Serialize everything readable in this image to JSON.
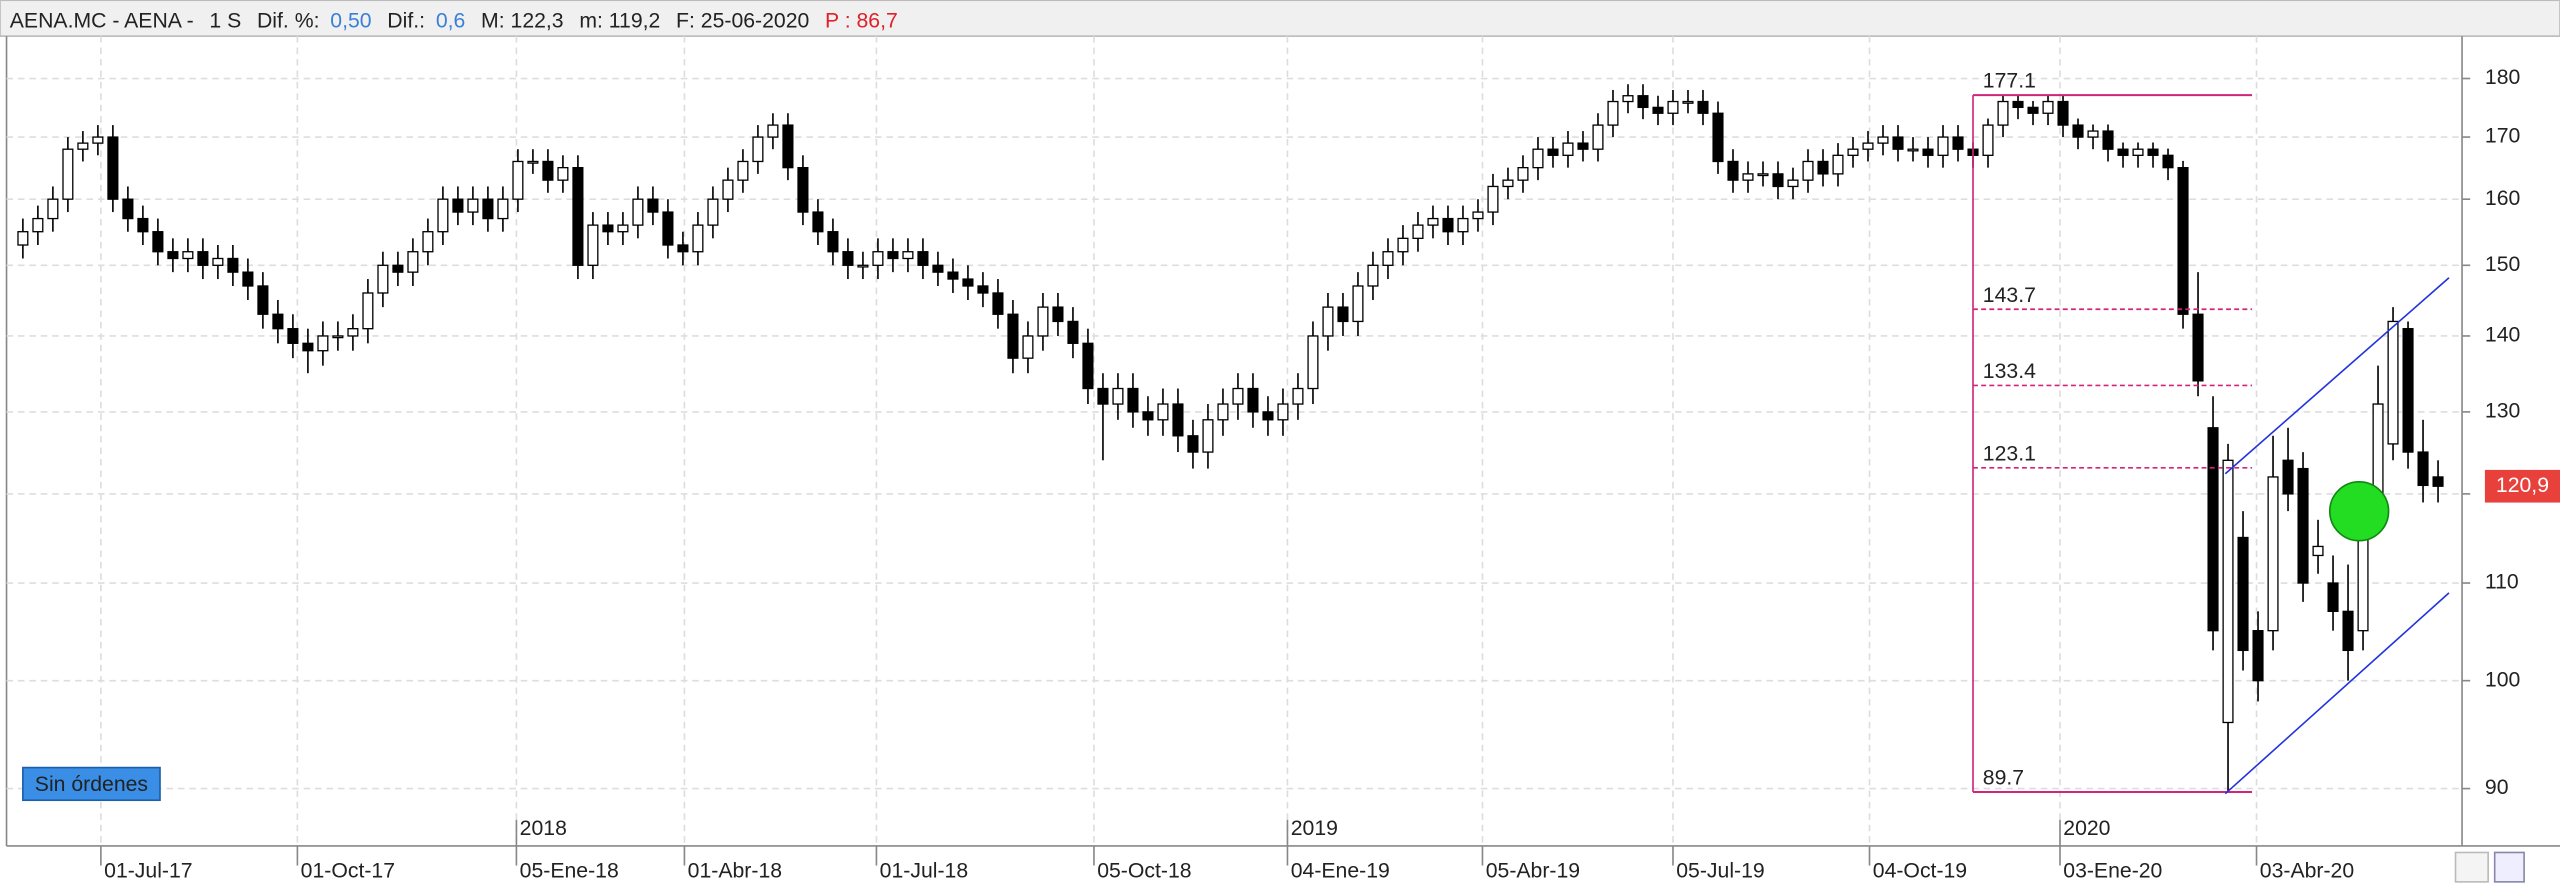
{
  "header": {
    "symbol": "AENA.MC - AENA -",
    "period": "1 S",
    "dif_pct_label": "Dif. %:",
    "dif_pct": "0,50",
    "dif_label": "Dif.:",
    "dif": "0,6",
    "max_label": "M: 122,3",
    "min_label": "m: 119,2",
    "date_label": "F: 25-06-2020",
    "p_label": "P : 86,7"
  },
  "orders_button": "Sin órdenes",
  "chart_data": {
    "type": "candlestick",
    "log_scale": true,
    "grid": true,
    "ylim": [
      85.1,
      187.6
    ],
    "yticks": [
      90,
      100,
      110,
      120,
      130,
      140,
      150,
      160,
      170,
      180
    ],
    "xlim": [
      -1.09,
      162.6
    ],
    "xticks": [
      {
        "value": 5.2,
        "label": "01-Jul-17"
      },
      {
        "value": 18.3,
        "label": "01-Oct-17"
      },
      {
        "value": 32.9,
        "label": "05-Ene-18"
      },
      {
        "value": 44.1,
        "label": "01-Abr-18"
      },
      {
        "value": 56.9,
        "label": "01-Jul-18"
      },
      {
        "value": 71.4,
        "label": "05-Oct-18"
      },
      {
        "value": 84.3,
        "label": "04-Ene-19"
      },
      {
        "value": 97.3,
        "label": "05-Abr-19"
      },
      {
        "value": 110,
        "label": "05-Jul-19"
      },
      {
        "value": 123.1,
        "label": "04-Oct-19"
      },
      {
        "value": 135.8,
        "label": "03-Ene-20"
      },
      {
        "value": 148.9,
        "label": "03-Abr-20"
      }
    ],
    "year_ticks": [
      {
        "value": 32.9,
        "label": "2018"
      },
      {
        "value": 84.3,
        "label": "2019"
      },
      {
        "value": 135.8,
        "label": "2020"
      }
    ],
    "up_color": "#ffffff",
    "down_color": "#000000",
    "open": [
      153,
      155,
      157,
      160,
      168,
      169,
      170,
      160,
      157,
      155,
      152,
      151,
      152,
      150,
      151,
      149,
      147,
      143,
      141,
      139,
      138,
      140,
      140,
      141,
      146,
      150,
      149,
      152,
      155,
      160,
      158,
      160,
      157,
      160,
      166,
      166,
      163,
      165,
      150,
      156,
      155,
      156,
      160,
      158,
      153,
      152,
      156,
      160,
      163,
      166,
      170,
      172,
      165,
      158,
      155,
      152,
      150,
      150,
      152,
      151,
      152,
      150,
      149,
      148,
      147,
      146,
      143,
      137,
      140,
      144,
      142,
      139,
      133,
      131,
      133,
      130,
      129,
      131,
      127,
      125,
      129,
      131,
      133,
      130,
      129,
      131,
      133,
      140,
      144,
      142,
      147,
      150,
      152,
      154,
      156,
      157,
      155,
      157,
      158,
      162,
      163,
      165,
      168,
      167,
      169,
      168,
      172,
      176,
      177,
      175,
      174,
      176,
      176,
      174,
      166,
      163,
      164,
      164,
      162,
      163,
      166,
      164,
      167,
      168,
      169,
      170,
      168,
      168,
      167,
      170,
      168,
      167,
      172,
      176,
      175,
      174,
      176,
      172,
      170,
      171,
      168,
      167,
      168,
      167,
      165,
      143,
      128,
      96,
      115,
      105,
      105,
      124,
      123,
      113,
      110,
      107,
      105,
      118,
      126,
      141,
      125,
      122
    ],
    "high": [
      157,
      159,
      162,
      170,
      171,
      172,
      172,
      162,
      159,
      157,
      154,
      154,
      154,
      153,
      153,
      151,
      149,
      145,
      143,
      141,
      142,
      142,
      143,
      148,
      152,
      152,
      154,
      157,
      162,
      162,
      162,
      162,
      162,
      168,
      168,
      168,
      167,
      167,
      158,
      158,
      158,
      162,
      162,
      160,
      155,
      158,
      162,
      165,
      168,
      172,
      174,
      174,
      167,
      160,
      157,
      154,
      152,
      154,
      154,
      154,
      154,
      152,
      151,
      150,
      149,
      148,
      145,
      142,
      146,
      146,
      144,
      141,
      135,
      135,
      135,
      132,
      133,
      133,
      129,
      131,
      133,
      135,
      135,
      132,
      133,
      135,
      142,
      146,
      146,
      149,
      152,
      154,
      156,
      158,
      159,
      159,
      159,
      160,
      164,
      165,
      167,
      170,
      170,
      171,
      171,
      174,
      178,
      179,
      179,
      177,
      178,
      178,
      178,
      176,
      168,
      166,
      166,
      166,
      165,
      168,
      168,
      169,
      170,
      171,
      172,
      172,
      170,
      170,
      172,
      172,
      169.1,
      173.1,
      177.1,
      177.1,
      176.1,
      177.1,
      177.1,
      173.1,
      172.1,
      172.1,
      169.1,
      169.1,
      169.1,
      168.1,
      166.1,
      149,
      132,
      126,
      118,
      107,
      127,
      128,
      125,
      117,
      113,
      112,
      118,
      136,
      144,
      142,
      129,
      124
    ],
    "low": [
      151,
      153,
      155,
      158,
      166,
      167,
      158,
      155,
      153,
      150,
      149,
      149,
      148,
      148,
      147,
      145,
      141,
      139,
      137,
      135,
      136,
      138,
      138,
      139,
      144,
      147,
      147,
      150,
      153,
      156,
      156,
      155,
      155,
      158,
      164,
      161,
      161,
      148,
      148,
      153,
      153,
      154,
      156,
      151,
      150,
      150,
      154,
      158,
      161,
      164,
      168,
      163,
      156,
      153,
      150,
      148,
      148,
      148,
      149,
      149,
      148,
      147,
      146,
      145,
      144,
      141,
      135,
      135,
      138,
      140,
      137,
      131,
      124,
      129,
      128,
      127,
      127,
      125,
      123,
      123,
      127,
      129,
      128,
      127,
      127,
      129,
      131,
      138,
      140,
      140,
      145,
      148,
      150,
      152,
      154,
      153,
      153,
      155,
      156,
      160,
      161,
      163,
      165,
      165,
      166,
      166,
      170,
      174,
      173,
      172,
      172,
      174,
      172,
      164,
      161,
      161,
      162,
      160,
      160,
      161,
      162,
      162,
      165,
      166,
      167,
      166,
      166,
      165,
      165,
      166,
      165,
      165,
      170,
      173,
      172,
      172,
      170,
      168,
      168,
      166,
      165,
      165,
      165,
      163,
      141,
      132,
      103,
      89.7,
      101,
      98,
      103,
      118,
      108,
      111,
      105,
      100,
      103,
      116,
      124,
      123,
      119,
      119
    ],
    "close": [
      155,
      157,
      160,
      168,
      169,
      170,
      160,
      157,
      155,
      152,
      151,
      152,
      150,
      151,
      149,
      147,
      143,
      141,
      139,
      138,
      140,
      140,
      141,
      146,
      150,
      149,
      152,
      155,
      160,
      158,
      160,
      157,
      160,
      166,
      166,
      163,
      165,
      150,
      156,
      155,
      156,
      160,
      158,
      153,
      152,
      156,
      160,
      163,
      166,
      170,
      172,
      165,
      158,
      155,
      152,
      150,
      150,
      152,
      151,
      152,
      150,
      149,
      148,
      147,
      146,
      143,
      137,
      140,
      144,
      142,
      139,
      133,
      131,
      133,
      130,
      129,
      131,
      127,
      125,
      129,
      131,
      133,
      130,
      129,
      131,
      133,
      140,
      144,
      142,
      147,
      150,
      152,
      154,
      156,
      157,
      155,
      157,
      158,
      162,
      163,
      165,
      168,
      167,
      169,
      168,
      172,
      176,
      177,
      175,
      174,
      176,
      176,
      174,
      166,
      163,
      164,
      164,
      162,
      163,
      166,
      164,
      167,
      168,
      169,
      170,
      168,
      168,
      167,
      170,
      168,
      167,
      172,
      176,
      175,
      174,
      176,
      172,
      170,
      171,
      168,
      167,
      168,
      167,
      165,
      143,
      134,
      105,
      124,
      103,
      100,
      122,
      120,
      110,
      114,
      107,
      103,
      116,
      131,
      142,
      125,
      121,
      120.9
    ],
    "fib_levels": [
      177.1,
      143.7,
      133.4,
      123.1,
      89.7
    ],
    "fib_color": "#d0257a",
    "last_price": {
      "value": 120.9,
      "label": "120,9"
    },
    "last_price_color": "#e8413c"
  }
}
